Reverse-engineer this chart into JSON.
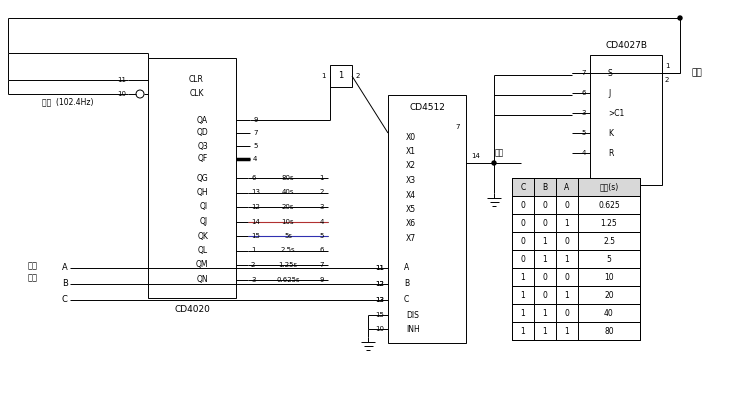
{
  "bg_color": "#ffffff",
  "line_color": "#000000",
  "table_header": [
    "C",
    "B",
    "A",
    "输出(s)"
  ],
  "table_rows": [
    [
      "0",
      "0",
      "0",
      "0.625"
    ],
    [
      "0",
      "0",
      "1",
      "1.25"
    ],
    [
      "0",
      "1",
      "0",
      "2.5"
    ],
    [
      "0",
      "1",
      "1",
      "5"
    ],
    [
      "1",
      "0",
      "0",
      "10"
    ],
    [
      "1",
      "0",
      "1",
      "20"
    ],
    [
      "1",
      "1",
      "0",
      "40"
    ],
    [
      "1",
      "1",
      "1",
      "80"
    ]
  ],
  "cd4020_label": "CD4020",
  "cd4512_label": "CD4512",
  "cd4027b_label": "CD4027B",
  "clk_label": "时钟  (102.4Hz)",
  "output_label": "输出",
  "startup_label": "启动",
  "timing_label1": "定时",
  "timing_label2": "选择",
  "qa_pins": [
    "QA",
    "QD",
    "Q3",
    "QF"
  ],
  "qa_nums": [
    "9",
    "7",
    "5",
    "4"
  ],
  "qg_pins": [
    "QG",
    "QH",
    "QI",
    "QJ",
    "QK",
    "QL",
    "QM",
    "QN"
  ],
  "qg_nums_left": [
    "6",
    "13",
    "12",
    "14",
    "15",
    "1",
    "2",
    "3"
  ],
  "qg_times": [
    "80s",
    "40s",
    "20s",
    "10s",
    "5s",
    "2.5s",
    "1.25s",
    "0.625s"
  ],
  "qg_nums_right": [
    "1",
    "2",
    "3",
    "4",
    "5",
    "6",
    "7",
    "9"
  ],
  "x_pins": [
    "X0",
    "X1",
    "X2",
    "X3",
    "X4",
    "X5",
    "X6",
    "X7"
  ],
  "cd4027b_pins": [
    "S",
    "J",
    ">C1",
    "K",
    "R"
  ],
  "cd4027b_nums": [
    "7",
    "6",
    "3",
    "5",
    "4"
  ],
  "abc_pins": [
    "A",
    "B",
    "C"
  ],
  "abc_nums": [
    "11",
    "12",
    "13"
  ],
  "dis_inh": [
    "DIS",
    "INH"
  ],
  "dis_inh_nums": [
    "15",
    "10"
  ],
  "pin_11": "11",
  "pin_10": "10",
  "pin_14": "14",
  "pin_7": "7",
  "pin_1": "1",
  "pin_2": "2"
}
